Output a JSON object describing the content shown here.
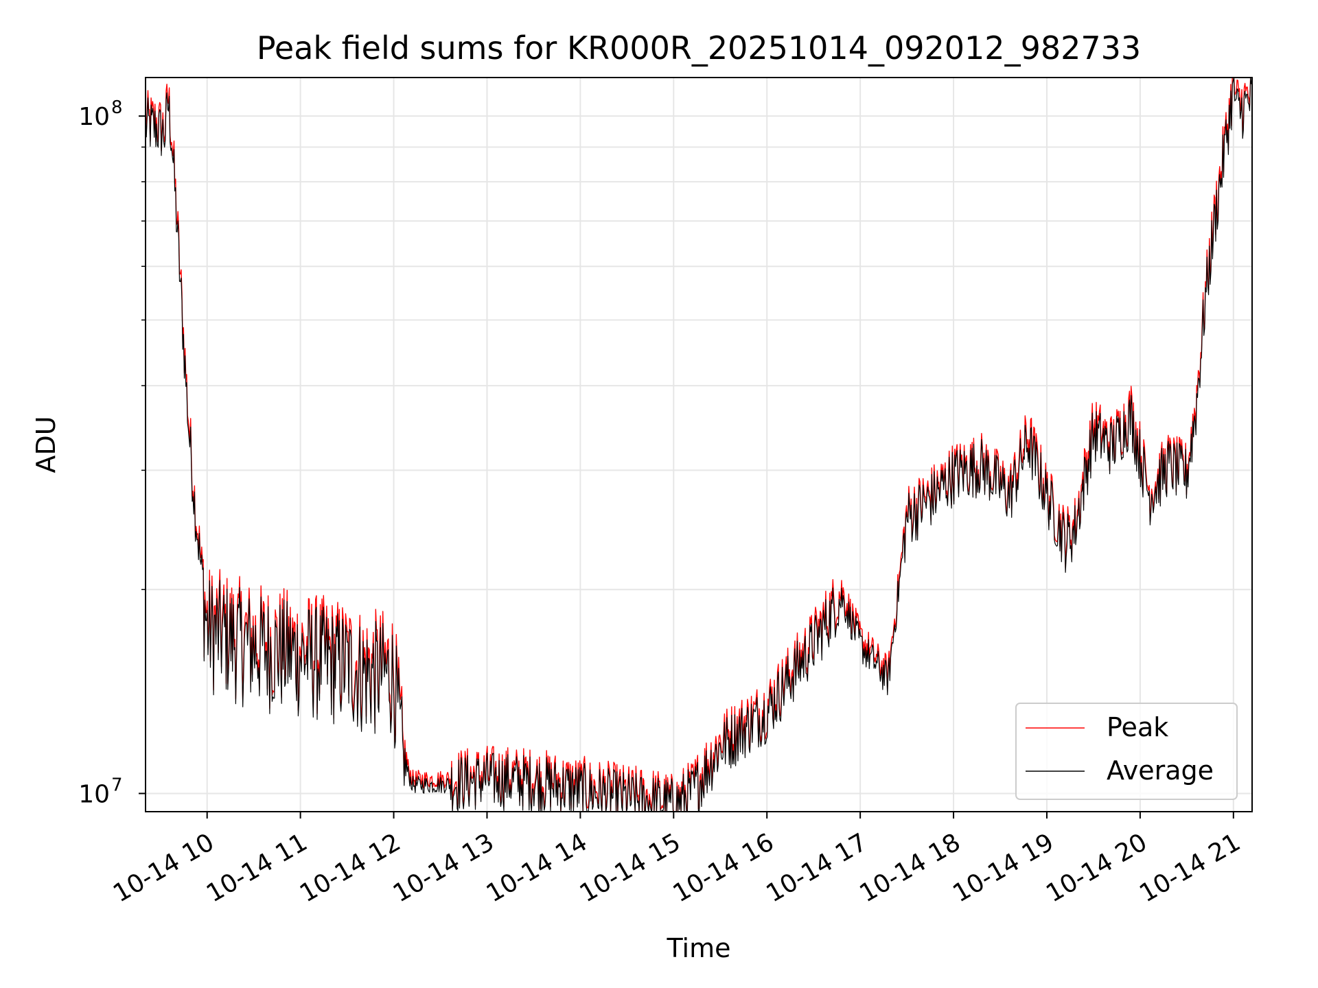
{
  "chart_data": {
    "type": "line",
    "title": "Peak field sums for KR000R_20251014_092012_982733",
    "xlabel": "Time",
    "ylabel": "ADU",
    "yscale": "log",
    "ylim": [
      9400000,
      114000000
    ],
    "xlim_hours": [
      9.34,
      21.2
    ],
    "grid": true,
    "legend_position": "lower-right",
    "x_ticks": [
      {
        "hour": 10,
        "label": "10-14 10"
      },
      {
        "hour": 11,
        "label": "10-14 11"
      },
      {
        "hour": 12,
        "label": "10-14 12"
      },
      {
        "hour": 13,
        "label": "10-14 13"
      },
      {
        "hour": 14,
        "label": "10-14 14"
      },
      {
        "hour": 15,
        "label": "10-14 15"
      },
      {
        "hour": 16,
        "label": "10-14 16"
      },
      {
        "hour": 17,
        "label": "10-14 17"
      },
      {
        "hour": 18,
        "label": "10-14 18"
      },
      {
        "hour": 19,
        "label": "10-14 19"
      },
      {
        "hour": 20,
        "label": "10-14 20"
      },
      {
        "hour": 21,
        "label": "10-14 21"
      }
    ],
    "y_ticks": [
      {
        "value": 10000000,
        "base": "10",
        "exp": "7"
      },
      {
        "value": 100000000,
        "base": "10",
        "exp": "8"
      }
    ],
    "y_minor_ticks": [
      20000000,
      30000000,
      40000000,
      50000000,
      60000000,
      70000000,
      80000000,
      90000000
    ],
    "series": [
      {
        "name": "Peak",
        "color": "#ff0000",
        "profile_hours": [
          9.34,
          9.45,
          9.55,
          9.58,
          9.62,
          9.68,
          9.75,
          9.8,
          9.87,
          9.95,
          10.0,
          10.5,
          11.0,
          11.5,
          11.7,
          12.0,
          12.1,
          12.2,
          12.5,
          13.0,
          13.5,
          14.0,
          14.5,
          14.8,
          15.0,
          15.2,
          15.5,
          16.0,
          16.5,
          16.8,
          17.0,
          17.3,
          17.5,
          17.8,
          18.0,
          18.3,
          18.6,
          18.8,
          19.0,
          19.2,
          19.3,
          19.5,
          19.7,
          19.9,
          20.1,
          20.3,
          20.5,
          20.6,
          20.7,
          20.8,
          20.9,
          21.0,
          21.05,
          21.2
        ],
        "profile_values": [
          99000000,
          98000000,
          96000000,
          108000000,
          95000000,
          70000000,
          47000000,
          36000000,
          27000000,
          21000000,
          18000000,
          17000000,
          16500000,
          16000000,
          15500000,
          15500000,
          11500000,
          10500000,
          10500000,
          10700000,
          10600000,
          10300000,
          10000000,
          9900000,
          9700000,
          10200000,
          12000000,
          13500000,
          17000000,
          20000000,
          17000000,
          15000000,
          26000000,
          28000000,
          30000000,
          31000000,
          28000000,
          34000000,
          28000000,
          24000000,
          25000000,
          35000000,
          33000000,
          37000000,
          28000000,
          31000000,
          30000000,
          38000000,
          55000000,
          72000000,
          90000000,
          112000000,
          104000000,
          108000000
        ],
        "noise_amplitude": 0.1
      },
      {
        "name": "Average",
        "color": "#000000",
        "profile_hours": [
          9.34,
          9.45,
          9.55,
          9.58,
          9.62,
          9.68,
          9.75,
          9.8,
          9.87,
          9.95,
          10.0,
          10.5,
          11.0,
          11.5,
          11.7,
          12.0,
          12.1,
          12.2,
          12.5,
          13.0,
          13.5,
          14.0,
          14.5,
          14.8,
          15.0,
          15.2,
          15.5,
          16.0,
          16.5,
          16.8,
          17.0,
          17.3,
          17.5,
          17.8,
          18.0,
          18.3,
          18.6,
          18.8,
          19.0,
          19.2,
          19.3,
          19.5,
          19.7,
          19.9,
          20.1,
          20.3,
          20.5,
          20.6,
          20.7,
          20.8,
          20.9,
          21.0,
          21.05,
          21.2
        ],
        "profile_values": [
          97000000,
          96000000,
          94000000,
          105000000,
          93000000,
          68000000,
          46000000,
          35000000,
          26500000,
          20500000,
          17500000,
          16500000,
          16000000,
          15500000,
          15000000,
          15000000,
          11200000,
          10300000,
          10300000,
          10500000,
          10400000,
          10100000,
          9800000,
          9700000,
          9600000,
          10000000,
          11700000,
          13200000,
          16600000,
          19500000,
          16600000,
          14700000,
          25500000,
          27500000,
          29500000,
          30500000,
          27500000,
          33000000,
          27500000,
          23500000,
          24500000,
          34000000,
          32500000,
          36000000,
          27500000,
          30500000,
          29500000,
          37000000,
          54000000,
          70000000,
          88000000,
          110000000,
          101000000,
          106000000
        ],
        "noise_amplitude": 0.1
      }
    ]
  }
}
